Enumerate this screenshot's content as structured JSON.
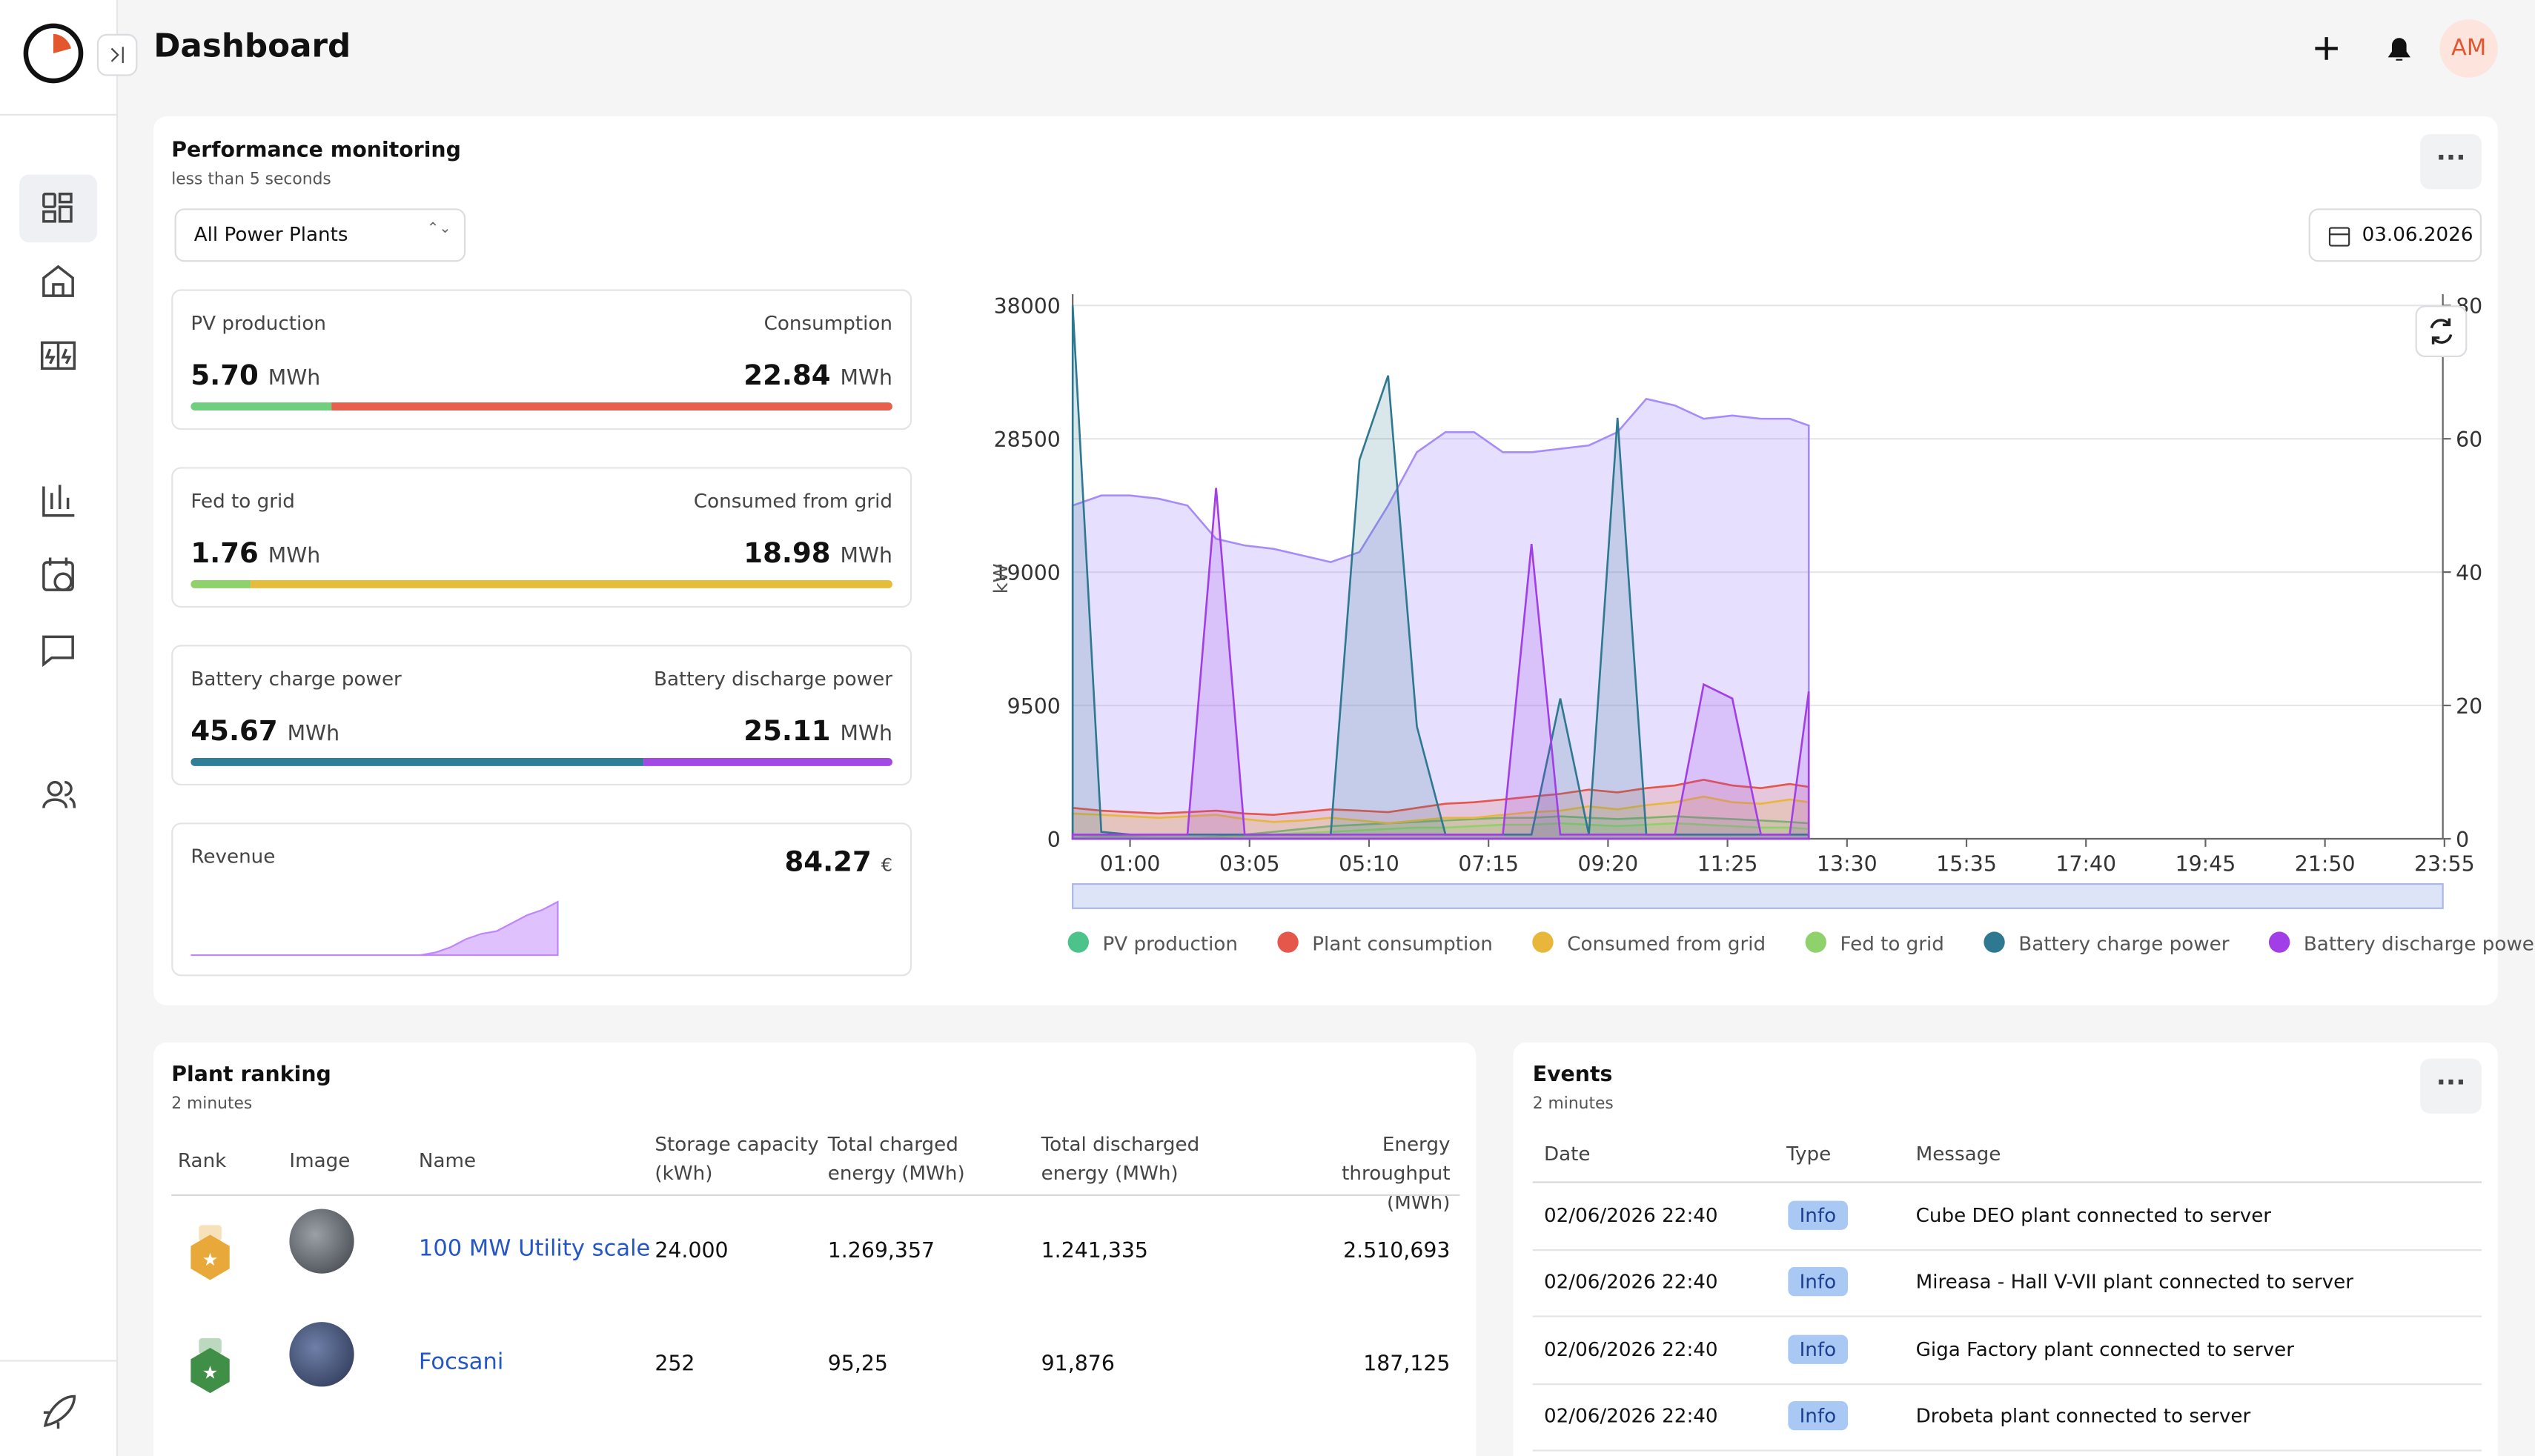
{
  "header": {
    "title": "Dashboard",
    "avatar": "AM"
  },
  "performance": {
    "title": "Performance monitoring",
    "subtitle": "less than 5 seconds",
    "select": "All Power Plants",
    "date": "03.06.2026",
    "kpis": [
      {
        "left_label": "PV production",
        "left_value": "5.70",
        "left_unit": "MWh",
        "left_color": "#6fcf7f",
        "right_label": "Consumption",
        "right_value": "22.84",
        "right_unit": "MWh",
        "right_color": "#e8604c"
      },
      {
        "left_label": "Fed to grid",
        "left_value": "1.76",
        "left_unit": "MWh",
        "left_color": "#8fd16a",
        "right_label": "Consumed from grid",
        "right_value": "18.98",
        "right_unit": "MWh",
        "right_color": "#e6bd3a"
      },
      {
        "left_label": "Battery charge power",
        "left_value": "45.67",
        "left_unit": "MWh",
        "left_color": "#2f7f99",
        "right_label": "Battery discharge power",
        "right_value": "25.11",
        "right_unit": "MWh",
        "right_color": "#a248e6"
      }
    ],
    "revenue": {
      "label": "Revenue",
      "value": "84.27",
      "unit": "€",
      "color": "#c084fc",
      "values": [
        0,
        0,
        0,
        0,
        0,
        0,
        0,
        0,
        0,
        0,
        0,
        0,
        0,
        0,
        0,
        0,
        0.05,
        0.15,
        0.3,
        0.4,
        0.45,
        0.6,
        0.75,
        0.85,
        1
      ]
    }
  },
  "chart_data": {
    "type": "area",
    "ylabel": "kW",
    "x": [
      "00:00",
      "00:30",
      "01:00",
      "01:30",
      "02:00",
      "02:30",
      "03:00",
      "03:30",
      "04:00",
      "04:30",
      "05:00",
      "05:30",
      "06:00",
      "06:30",
      "07:00",
      "07:30",
      "08:00",
      "08:30",
      "09:00",
      "09:30",
      "10:00",
      "10:30",
      "11:00",
      "11:30",
      "12:00",
      "12:30",
      "12:50"
    ],
    "xlim": [
      "00:00",
      "23:55"
    ],
    "xticks": [
      "01:00",
      "03:05",
      "05:10",
      "07:15",
      "09:20",
      "11:25",
      "13:30",
      "15:35",
      "17:40",
      "19:45",
      "21:50",
      "23:55"
    ],
    "ylim": [
      0,
      38000
    ],
    "yticks": [
      0,
      9500,
      19000,
      28500,
      38000
    ],
    "y2lim": [
      0,
      80
    ],
    "y2ticks": [
      0,
      20,
      40,
      60,
      80
    ],
    "grid": true,
    "series": [
      {
        "color": "#a78bfa",
        "axis": "y2",
        "values": [
          50,
          51.5,
          51.5,
          51,
          50,
          45,
          44,
          43.5,
          42.5,
          41.5,
          43,
          50,
          58,
          61,
          61,
          58,
          58,
          58.5,
          59,
          61,
          66,
          65,
          63,
          63.5,
          63,
          63,
          62
        ]
      },
      {
        "name": "PV production",
        "color": "#4cc38a",
        "values": [
          300,
          200,
          150,
          100,
          100,
          150,
          300,
          500,
          700,
          900,
          1000,
          1100,
          1200,
          1300,
          1400,
          1500,
          1500,
          1600,
          1500,
          1400,
          1500,
          1600,
          1500,
          1400,
          1300,
          1200,
          1100
        ]
      },
      {
        "name": "Plant consumption",
        "color": "#e5574a",
        "values": [
          2200,
          2000,
          1900,
          1800,
          1900,
          2000,
          1800,
          1700,
          1900,
          2100,
          2000,
          1900,
          2200,
          2500,
          2600,
          2800,
          3000,
          3200,
          3500,
          3300,
          3600,
          3800,
          4200,
          3800,
          3600,
          3900,
          3700
        ]
      },
      {
        "name": "Consumed from grid",
        "color": "#e8b63a",
        "values": [
          1800,
          1700,
          1600,
          1500,
          1600,
          1700,
          1400,
          1200,
          1300,
          1500,
          1300,
          1100,
          1300,
          1500,
          1500,
          1700,
          1900,
          2000,
          2300,
          2100,
          2400,
          2600,
          3000,
          2600,
          2500,
          2800,
          2600
        ]
      },
      {
        "name": "Fed to grid",
        "color": "#8fd16a",
        "values": [
          100,
          100,
          100,
          100,
          100,
          100,
          200,
          300,
          400,
          500,
          600,
          700,
          800,
          800,
          900,
          1000,
          1000,
          1100,
          1000,
          900,
          1000,
          1100,
          1000,
          900,
          800,
          800,
          700
        ]
      },
      {
        "name": "Battery charge power",
        "color": "#2e7891",
        "values": [
          38000,
          500,
          300,
          300,
          300,
          300,
          300,
          300,
          300,
          300,
          27000,
          33000,
          8000,
          300,
          300,
          300,
          300,
          10000,
          300,
          30000,
          300,
          300,
          300,
          300,
          300,
          300,
          300
        ]
      },
      {
        "name": "Battery discharge power",
        "color": "#a23ee8",
        "values": [
          300,
          300,
          300,
          300,
          300,
          25000,
          300,
          300,
          300,
          300,
          300,
          300,
          300,
          300,
          300,
          300,
          21000,
          300,
          300,
          300,
          300,
          300,
          11000,
          10000,
          300,
          300,
          10500
        ]
      }
    ]
  },
  "ranking": {
    "title": "Plant ranking",
    "subtitle": "2 minutes",
    "columns": [
      "Rank",
      "Image",
      "Name",
      "Storage capacity (kWh)",
      "Total charged energy (MWh)",
      "Total discharged energy (MWh)",
      "Energy throughput (MWh)"
    ],
    "rows": [
      {
        "name": "100 MW Utility scale",
        "storage": "24.000",
        "charged": "1.269,357",
        "discharged": "1.241,335",
        "throughput": "2.510,693"
      },
      {
        "name": "Focsani",
        "storage": "252",
        "charged": "95,25",
        "discharged": "91,876",
        "throughput": "187,125"
      }
    ]
  },
  "events": {
    "title": "Events",
    "subtitle": "2 minutes",
    "columns": [
      "Date",
      "Type",
      "Message"
    ],
    "rows": [
      [
        "02/06/2026 22:40",
        "Info",
        "Cube DEO plant connected to server"
      ],
      [
        "02/06/2026 22:40",
        "Info",
        "Mireasa - Hall V-VII plant connected to server"
      ],
      [
        "02/06/2026 22:40",
        "Info",
        "Giga Factory plant connected to server"
      ],
      [
        "02/06/2026 22:40",
        "Info",
        "Drobeta plant connected to server"
      ]
    ]
  }
}
